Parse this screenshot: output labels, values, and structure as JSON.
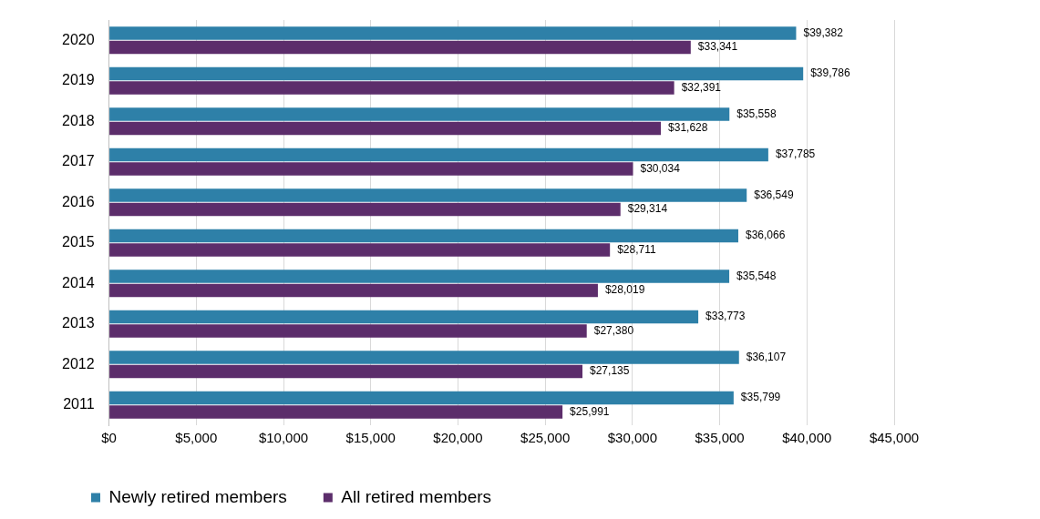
{
  "chart_data": {
    "type": "bar",
    "orientation": "horizontal",
    "categories": [
      "2020",
      "2019",
      "2018",
      "2017",
      "2016",
      "2015",
      "2014",
      "2013",
      "2012",
      "2011"
    ],
    "series": [
      {
        "name": "Newly retired members",
        "color": "#2e80a8",
        "values": [
          39382,
          39786,
          35558,
          37785,
          36549,
          36066,
          35548,
          33773,
          36107,
          35799
        ],
        "value_labels": [
          "$39,382",
          "$39,786",
          "$35,558",
          "$37,785",
          "$36,549",
          "$36,066",
          "$35,548",
          "$33,773",
          "$36,107",
          "$35,799"
        ]
      },
      {
        "name": "All retired members",
        "color": "#5c2d6b",
        "values": [
          33341,
          32391,
          31628,
          30034,
          29314,
          28711,
          28019,
          27380,
          27135,
          25991
        ],
        "value_labels": [
          "$33,341",
          "$32,391",
          "$31,628",
          "$30,034",
          "$29,314",
          "$28,711",
          "$28,019",
          "$27,380",
          "$27,135",
          "$25,991"
        ]
      }
    ],
    "xlim": [
      0,
      45000
    ],
    "xticks": [
      {
        "value": 0,
        "label": "$0"
      },
      {
        "value": 5000,
        "label": "$5,000"
      },
      {
        "value": 10000,
        "label": "$10,000"
      },
      {
        "value": 15000,
        "label": "$15,000"
      },
      {
        "value": 20000,
        "label": "$20,000"
      },
      {
        "value": 25000,
        "label": "$25,000"
      },
      {
        "value": 30000,
        "label": "$30,000"
      },
      {
        "value": 35000,
        "label": "$35,000"
      },
      {
        "value": 40000,
        "label": "$40,000"
      },
      {
        "value": 45000,
        "label": "$45,000"
      }
    ],
    "grid": true,
    "legend": "bottom",
    "data_labels": true
  }
}
